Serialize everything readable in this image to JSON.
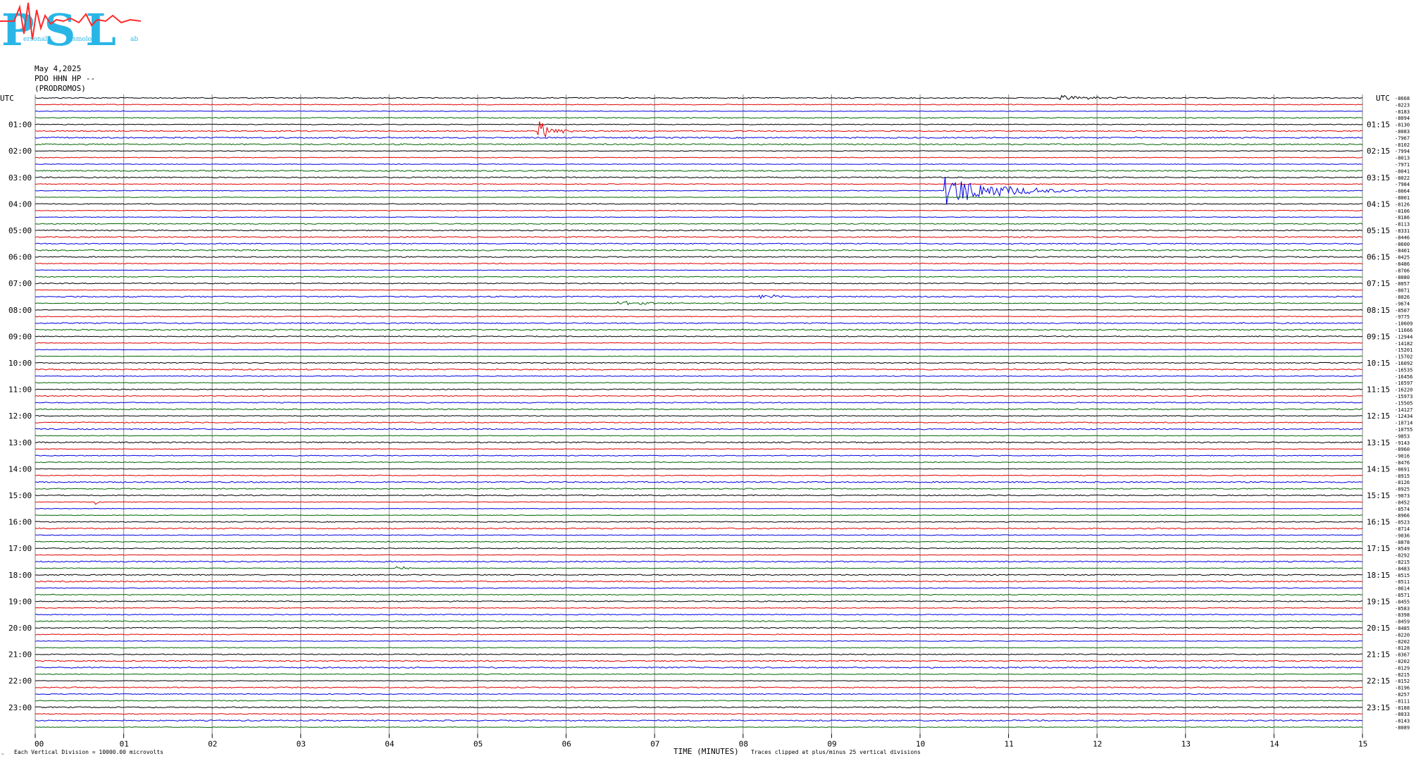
{
  "logo": {
    "text": "PSL",
    "small_words": [
      "ersonal",
      "eismology",
      "ab"
    ],
    "colors": {
      "main": "#29b6e6",
      "trace": "#ff2a2a"
    }
  },
  "header": {
    "date": "May 4,2025",
    "station": "PDO HHN HP --",
    "location": "(PRODROMOS)"
  },
  "footer": {
    "scale_note": "Each Vertical Division = 10000.00 microvolts",
    "xlabel": "TIME (MINUTES)",
    "clip_note": "Traces clipped at plus/minus 25 vertical divisions"
  },
  "chart_data": {
    "type": "line",
    "title": "",
    "xlabel": "TIME (MINUTES)",
    "ylabel": "UTC",
    "right_axis_label": "UTC",
    "xlim": [
      0,
      15
    ],
    "x_ticks": [
      "00",
      "01",
      "02",
      "03",
      "04",
      "05",
      "06",
      "07",
      "08",
      "09",
      "10",
      "11",
      "12",
      "13",
      "14",
      "15"
    ],
    "rows_per_hour": 4,
    "trace_count": 96,
    "trace_color_cycle": [
      "#000000",
      "#e00000",
      "#0000e0",
      "#006400"
    ],
    "left_hour_labels": [
      "UTC",
      "01:00",
      "02:00",
      "03:00",
      "04:00",
      "05:00",
      "06:00",
      "07:00",
      "08:00",
      "09:00",
      "10:00",
      "11:00",
      "12:00",
      "13:00",
      "14:00",
      "15:00",
      "16:00",
      "17:00",
      "18:00",
      "19:00",
      "20:00",
      "21:00",
      "22:00",
      "23:00"
    ],
    "right_hour_labels": [
      "UTC",
      "01:15",
      "02:15",
      "03:15",
      "04:15",
      "05:15",
      "06:15",
      "07:15",
      "08:15",
      "09:15",
      "10:15",
      "11:15",
      "12:15",
      "13:15",
      "14:15",
      "15:15",
      "16:15",
      "17:15",
      "18:15",
      "19:15",
      "20:15",
      "21:15",
      "22:15",
      "23:15"
    ],
    "trace_offsets": [
      "-8668",
      "-8223",
      "-8183",
      "-8094",
      "-8130",
      "-8083",
      "-7967",
      "-8102",
      "-7994",
      "-8013",
      "-7971",
      "-8041",
      "-8022",
      "-7984",
      "-8064",
      "-8001",
      "-8126",
      "-8106",
      "-8186",
      "-8113",
      "-8331",
      "-8446",
      "-8600",
      "-8401",
      "-8425",
      "-8486",
      "-8706",
      "-8080",
      "-8057",
      "-8071",
      "-8026",
      "-9674",
      "-8507",
      "-9775",
      "-10609",
      "-11666",
      "-12944",
      "-14182",
      "-15201",
      "-15702",
      "-16092",
      "-16535",
      "-16456",
      "-16597",
      "-16220",
      "-15973",
      "-15505",
      "-14127",
      "-12434",
      "-10714",
      "-10755",
      "-9853",
      "-9143",
      "-8960",
      "-9016",
      "-8476",
      "-8691",
      "-8915",
      "-8126",
      "-8925",
      "-9073",
      "-8452",
      "-8574",
      "-8966",
      "-8523",
      "-8714",
      "-9036",
      "-8878",
      "-8549",
      "-8292",
      "-8215",
      "-8483",
      "-8515",
      "-8511",
      "-8614",
      "-8571",
      "-8455",
      "-8583",
      "-8398",
      "-8459",
      "-8485",
      "-8220",
      "-8202",
      "-8128",
      "-8367",
      "-8202",
      "-8129",
      "-8215",
      "-8152",
      "-8196",
      "-8257",
      "-8111",
      "-8188",
      "-8033",
      "-8143",
      "-8089"
    ],
    "events": [
      {
        "row": 5,
        "minute": 5.7,
        "amplitude": 14,
        "duration": 0.6
      },
      {
        "row": 14,
        "minute": 10.3,
        "amplitude": 22,
        "duration": 2.0
      },
      {
        "row": 0,
        "minute": 11.6,
        "amplitude": 4,
        "duration": 1.6
      },
      {
        "row": 30,
        "minute": 8.2,
        "amplitude": 3,
        "duration": 1.2
      },
      {
        "row": 31,
        "minute": 6.6,
        "amplitude": 3,
        "duration": 1.4
      },
      {
        "row": 71,
        "minute": 4.1,
        "amplitude": 4,
        "duration": 0.3
      },
      {
        "row": 61,
        "minute": 0.7,
        "amplitude": 3,
        "duration": 0.2
      }
    ]
  }
}
